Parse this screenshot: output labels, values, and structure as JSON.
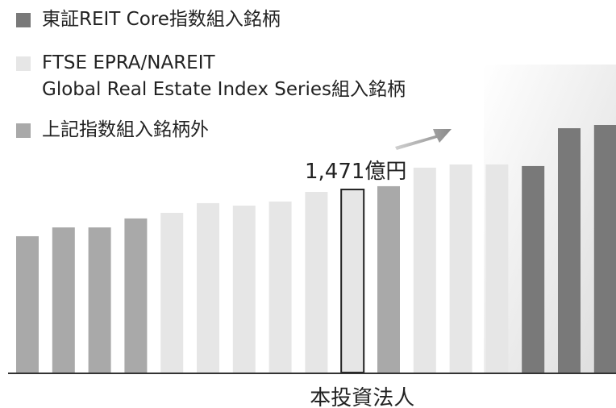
{
  "chart_data": {
    "type": "bar",
    "categories": [
      null,
      null,
      null,
      null,
      null,
      null,
      null,
      null,
      null,
      "本投資法人",
      null,
      null,
      null,
      null,
      null,
      null,
      null
    ],
    "series": [
      {
        "name": "東証REIT Core指数組入銘柄",
        "color": "#797979",
        "values": [
          null,
          null,
          null,
          null,
          null,
          null,
          null,
          null,
          null,
          null,
          null,
          null,
          null,
          null,
          1659,
          1963,
          1989
        ]
      },
      {
        "name": "FTSE EPRA/NAREIT\nGlobal Real Estate Index Series組入銘柄",
        "color": "#e6e6e6",
        "values": [
          null,
          null,
          null,
          null,
          1283,
          1361,
          1341,
          1374,
          1451,
          1471,
          null,
          1646,
          1672,
          1672,
          null,
          null,
          null
        ],
        "value_labels": [
          null,
          null,
          null,
          null,
          null,
          null,
          null,
          null,
          null,
          "1,471億円",
          null,
          null,
          null,
          null,
          null,
          null,
          null
        ]
      },
      {
        "name": "上記指数組入銘柄外",
        "color": "#a9a9a9",
        "values": [
          1095,
          1166,
          1166,
          1238,
          null,
          null,
          null,
          null,
          null,
          null,
          1497,
          null,
          null,
          null,
          null,
          null,
          null
        ]
      }
    ],
    "highlight": 9
  }
}
